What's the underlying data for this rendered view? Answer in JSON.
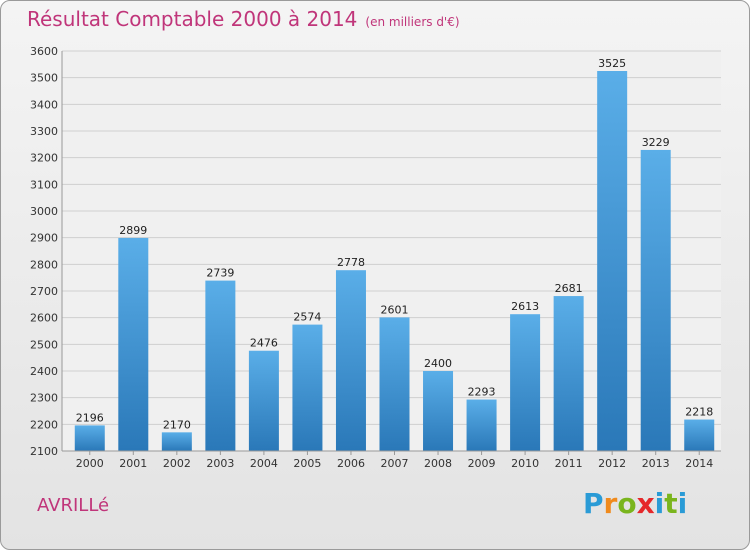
{
  "header": {
    "title": "Résultat Comptable 2000 à 2014",
    "subtitle": "(en milliers d'€)"
  },
  "footer": {
    "city": "AVRILLé",
    "logo_letters": [
      "P",
      "r",
      "o",
      "x",
      "i",
      "t",
      "i"
    ],
    "logo_colors": [
      "#2a9bd6",
      "#f08a1c",
      "#7ab51d",
      "#e5282a",
      "#2a9bd6",
      "#7ab51d",
      "#2a9bd6"
    ]
  },
  "colors": {
    "bar_light": "#5aaee8",
    "bar_dark": "#2a78b8",
    "title": "#c0357a"
  },
  "chart_data": {
    "type": "bar",
    "title": "Résultat Comptable 2000 à 2014",
    "subtitle": "(en milliers d'€)",
    "categories": [
      "2000",
      "2001",
      "2002",
      "2003",
      "2004",
      "2005",
      "2006",
      "2007",
      "2008",
      "2009",
      "2010",
      "2011",
      "2012",
      "2013",
      "2014"
    ],
    "values": [
      2196,
      2899,
      2170,
      2739,
      2476,
      2574,
      2778,
      2601,
      2400,
      2293,
      2613,
      2681,
      3525,
      3229,
      2218
    ],
    "ylim": [
      2100,
      3600
    ],
    "yticks": [
      2100,
      2200,
      2300,
      2400,
      2500,
      2600,
      2700,
      2800,
      2900,
      3000,
      3100,
      3200,
      3300,
      3400,
      3500,
      3600
    ],
    "grid": true,
    "xlabel": "",
    "ylabel": ""
  }
}
